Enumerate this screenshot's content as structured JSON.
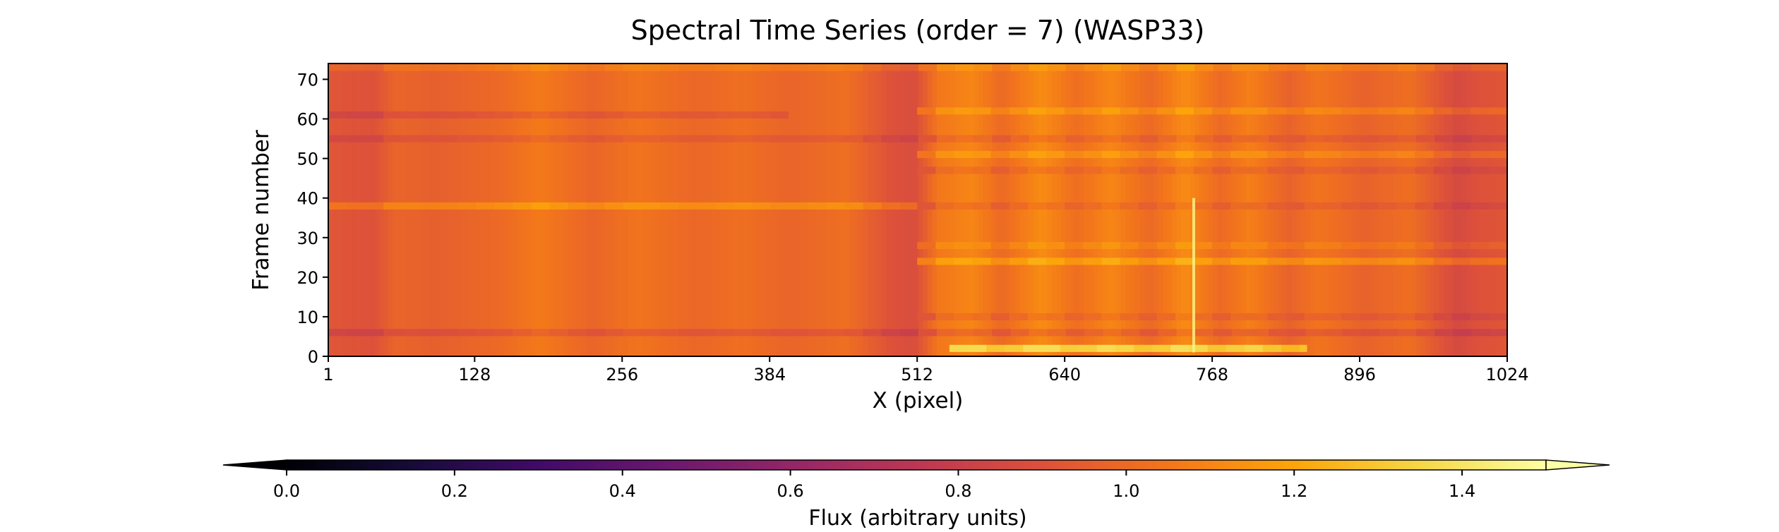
{
  "chart_data": {
    "type": "heatmap",
    "title": "Spectral Time Series (order = 7) (WASP33)",
    "xlabel": "X (pixel)",
    "ylabel": "Frame number",
    "xlim": [
      1,
      1024
    ],
    "ylim": [
      0,
      74
    ],
    "x_ticks": [
      1,
      128,
      256,
      384,
      512,
      640,
      768,
      896,
      1024
    ],
    "y_ticks": [
      0,
      10,
      20,
      30,
      40,
      50,
      60,
      70
    ],
    "grid": false,
    "colormap": "inferno",
    "colorbar": {
      "label": "Flux (arbitrary units)",
      "vmin": 0.0,
      "vmax": 1.5,
      "extend": "both",
      "ticks": [
        0.0,
        0.2,
        0.4,
        0.6,
        0.8,
        1.0,
        1.2,
        1.4
      ]
    },
    "column_profile": [
      {
        "x": 1,
        "flux": 0.92
      },
      {
        "x": 40,
        "flux": 0.9
      },
      {
        "x": 60,
        "flux": 0.98
      },
      {
        "x": 95,
        "flux": 0.96
      },
      {
        "x": 150,
        "flux": 1.0
      },
      {
        "x": 185,
        "flux": 1.06
      },
      {
        "x": 230,
        "flux": 0.98
      },
      {
        "x": 270,
        "flux": 1.04
      },
      {
        "x": 320,
        "flux": 0.99
      },
      {
        "x": 360,
        "flux": 1.02
      },
      {
        "x": 400,
        "flux": 0.98
      },
      {
        "x": 450,
        "flux": 1.02
      },
      {
        "x": 490,
        "flux": 0.9
      },
      {
        "x": 510,
        "flux": 0.88
      },
      {
        "x": 530,
        "flux": 1.05
      },
      {
        "x": 560,
        "flux": 1.1
      },
      {
        "x": 585,
        "flux": 1.0
      },
      {
        "x": 620,
        "flux": 1.12
      },
      {
        "x": 650,
        "flux": 1.02
      },
      {
        "x": 680,
        "flux": 1.1
      },
      {
        "x": 715,
        "flux": 1.0
      },
      {
        "x": 745,
        "flux": 1.12
      },
      {
        "x": 775,
        "flux": 1.0
      },
      {
        "x": 800,
        "flux": 1.08
      },
      {
        "x": 835,
        "flux": 0.97
      },
      {
        "x": 860,
        "flux": 1.04
      },
      {
        "x": 900,
        "flux": 0.97
      },
      {
        "x": 940,
        "flux": 1.02
      },
      {
        "x": 980,
        "flux": 0.86
      },
      {
        "x": 1000,
        "flux": 0.9
      },
      {
        "x": 1024,
        "flux": 0.92
      }
    ],
    "row_bands": [
      {
        "frame": 2,
        "flux_offset": 0.28,
        "x_range": [
          540,
          850
        ]
      },
      {
        "frame": 6,
        "flux_offset": -0.08,
        "x_range": [
          1,
          1024
        ]
      },
      {
        "frame": 10,
        "flux_offset": -0.05,
        "x_range": [
          512,
          1024
        ]
      },
      {
        "frame": 24,
        "flux_offset": 0.12,
        "x_range": [
          512,
          1024
        ]
      },
      {
        "frame": 28,
        "flux_offset": 0.05,
        "x_range": [
          512,
          1024
        ]
      },
      {
        "frame": 38,
        "flux_offset": 0.12,
        "x_range": [
          1,
          512
        ]
      },
      {
        "frame": 38,
        "flux_offset": -0.05,
        "x_range": [
          512,
          1024
        ]
      },
      {
        "frame": 47,
        "flux_offset": -0.05,
        "x_range": [
          512,
          1024
        ]
      },
      {
        "frame": 51,
        "flux_offset": 0.08,
        "x_range": [
          512,
          1024
        ]
      },
      {
        "frame": 55,
        "flux_offset": -0.06,
        "x_range": [
          1,
          1024
        ]
      },
      {
        "frame": 61,
        "flux_offset": -0.07,
        "x_range": [
          1,
          400
        ]
      },
      {
        "frame": 62,
        "flux_offset": 0.08,
        "x_range": [
          512,
          1024
        ]
      },
      {
        "frame": 73,
        "flux_offset": 0.06,
        "x_range": [
          1,
          1024
        ]
      }
    ],
    "hot_column": {
      "x": 752,
      "frames": [
        1,
        40
      ],
      "flux": 1.45
    }
  }
}
